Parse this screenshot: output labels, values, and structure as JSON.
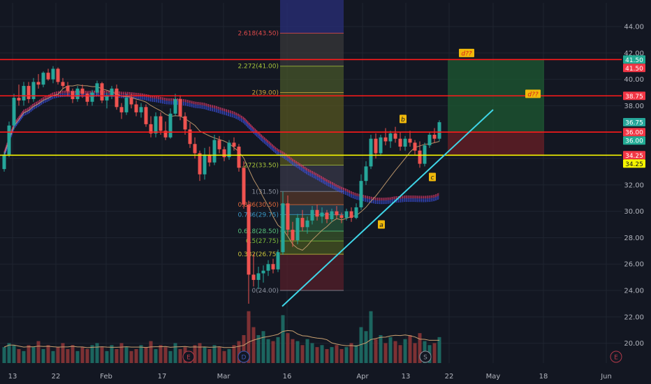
{
  "colors": {
    "background": "#131722",
    "grid": "#1f2430",
    "up": "#26a69a",
    "down": "#ef5350",
    "resistance": "#ff1a1a",
    "support": "#f5f500",
    "trendline": "#3fd6e8",
    "ema": "#c9a070",
    "ribbon_blue": "#3b4fd8",
    "ribbon_red": "#d83a6a",
    "axis_text": "#b2b5be",
    "badge_green": "#22ab94",
    "badge_red": "#f23645",
    "badge_yellow": "#f5f500",
    "badge_current": "#26a69a"
  },
  "chart_data": {
    "type": "candlestick",
    "title": "",
    "xlabel": "",
    "ylabel": "",
    "ylim": [
      18.5,
      45.8
    ],
    "y_ticks": [
      "20.00",
      "22.00",
      "24.00",
      "26.00",
      "28.00",
      "30.00",
      "32.00",
      "34.00",
      "36.00",
      "38.00",
      "40.00",
      "42.00",
      "44.00"
    ],
    "x_ticks": [
      "13",
      "22",
      "Feb",
      "17",
      "Mar",
      "16",
      "Apr",
      "13",
      "22",
      "May",
      "18",
      "Jun"
    ],
    "grid": true,
    "horizontal_levels": [
      {
        "value": 41.5,
        "color": "resistance"
      },
      {
        "value": 38.75,
        "color": "resistance"
      },
      {
        "value": 36.0,
        "color": "resistance"
      },
      {
        "value": 34.25,
        "color": "support"
      }
    ],
    "price_badges": [
      {
        "text": "41.50",
        "value": 41.5,
        "kind": "badge_green"
      },
      {
        "text": "41.50",
        "value": 41.5,
        "kind": "badge_red"
      },
      {
        "text": "38.75",
        "value": 38.75,
        "kind": "badge_red"
      },
      {
        "text": "36.75",
        "value": 36.75,
        "kind": "badge_current"
      },
      {
        "text": "36.00",
        "value": 36.0,
        "kind": "badge_red"
      },
      {
        "text": "36.00",
        "value": 36.0,
        "kind": "badge_green"
      },
      {
        "text": "34.25",
        "value": 34.25,
        "kind": "badge_red"
      },
      {
        "text": "34.25",
        "value": 34.25,
        "kind": "badge_yellow"
      }
    ],
    "fibonacci": {
      "levels": [
        {
          "label": "0(24.00)",
          "value": 24.0,
          "text_color": "#8a8f9c"
        },
        {
          "label": "0.382(26.75)",
          "value": 26.75,
          "text_color": "#c8c23a"
        },
        {
          "label": "0.5(27.75)",
          "value": 27.75,
          "text_color": "#7fbf3a"
        },
        {
          "label": "0.618(28.50)",
          "value": 28.5,
          "text_color": "#56c27a"
        },
        {
          "label": "0.786(29.75)",
          "value": 29.75,
          "text_color": "#3a9ac8"
        },
        {
          "label": "0.886(30.50)",
          "value": 30.5,
          "text_color": "#e0683a"
        },
        {
          "label": "1(31.50)",
          "value": 31.5,
          "text_color": "#8a8f9c"
        },
        {
          "label": "1.272(33.50)",
          "value": 33.5,
          "text_color": "#a6c23a"
        },
        {
          "label": "2(39.00)",
          "value": 39.0,
          "text_color": "#c8a23a"
        },
        {
          "label": "2.272(41.00)",
          "value": 41.0,
          "text_color": "#a6c23a"
        },
        {
          "label": "2.618(43.50)",
          "value": 43.5,
          "text_color": "#e04a4a"
        }
      ]
    },
    "pattern_labels": [
      {
        "text": "a",
        "value": 29.0
      },
      {
        "text": "b",
        "value": 37.0
      },
      {
        "text": "c",
        "value": 32.6
      },
      {
        "text": "d??",
        "value": 42.0
      },
      {
        "text": "d??",
        "value": 38.9
      }
    ],
    "event_markers": [
      "E",
      "D",
      "E",
      "S",
      "E"
    ],
    "trendline": {
      "from": 22.8,
      "to": 37.7
    },
    "position_box": {
      "entry": 36.0,
      "target": 41.5,
      "stop": 34.25
    },
    "candles": [
      [
        33.2,
        34.5,
        33.0,
        34.3
      ],
      [
        34.3,
        36.8,
        34.1,
        36.5
      ],
      [
        36.5,
        38.9,
        36.2,
        38.6
      ],
      [
        38.6,
        39.6,
        38.0,
        38.4
      ],
      [
        38.4,
        39.8,
        38.0,
        39.5
      ],
      [
        39.5,
        39.8,
        38.2,
        38.5
      ],
      [
        38.5,
        40.1,
        38.3,
        39.8
      ],
      [
        39.8,
        40.4,
        39.3,
        39.6
      ],
      [
        39.6,
        40.6,
        39.4,
        40.5
      ],
      [
        40.5,
        40.8,
        39.9,
        40.0
      ],
      [
        40.0,
        41.0,
        39.7,
        40.8
      ],
      [
        40.8,
        40.9,
        39.6,
        39.8
      ],
      [
        39.8,
        40.1,
        39.3,
        39.5
      ],
      [
        39.5,
        39.8,
        38.7,
        39.1
      ],
      [
        39.1,
        39.3,
        38.2,
        38.5
      ],
      [
        38.5,
        39.5,
        38.3,
        39.3
      ],
      [
        39.3,
        39.6,
        38.6,
        38.9
      ],
      [
        38.9,
        39.0,
        38.0,
        38.3
      ],
      [
        38.3,
        39.2,
        38.0,
        39.0
      ],
      [
        39.0,
        39.9,
        38.8,
        39.7
      ],
      [
        39.7,
        39.8,
        38.2,
        38.4
      ],
      [
        38.4,
        39.0,
        37.8,
        38.8
      ],
      [
        38.8,
        39.5,
        38.5,
        39.3
      ],
      [
        39.3,
        39.6,
        37.7,
        37.9
      ],
      [
        37.9,
        38.2,
        37.0,
        37.5
      ],
      [
        37.5,
        38.9,
        37.3,
        38.6
      ],
      [
        38.6,
        38.9,
        37.8,
        38.1
      ],
      [
        38.1,
        38.4,
        37.2,
        37.5
      ],
      [
        37.5,
        38.2,
        37.1,
        37.9
      ],
      [
        37.9,
        38.1,
        36.4,
        36.6
      ],
      [
        36.6,
        37.2,
        35.6,
        35.9
      ],
      [
        35.9,
        37.5,
        35.6,
        37.2
      ],
      [
        37.2,
        37.5,
        35.8,
        36.1
      ],
      [
        36.1,
        36.8,
        35.4,
        35.6
      ],
      [
        35.6,
        37.8,
        35.5,
        37.4
      ],
      [
        37.4,
        38.9,
        37.2,
        38.5
      ],
      [
        38.5,
        38.8,
        36.9,
        37.2
      ],
      [
        37.2,
        37.5,
        35.8,
        36.2
      ],
      [
        36.2,
        36.7,
        34.8,
        35.1
      ],
      [
        35.1,
        35.6,
        34.0,
        34.4
      ],
      [
        34.4,
        34.6,
        32.3,
        32.8
      ],
      [
        32.8,
        34.8,
        32.4,
        34.3
      ],
      [
        34.3,
        34.9,
        33.4,
        33.7
      ],
      [
        33.7,
        35.8,
        33.5,
        35.4
      ],
      [
        35.4,
        35.7,
        34.4,
        34.7
      ],
      [
        34.7,
        34.9,
        33.8,
        34.1
      ],
      [
        34.1,
        35.4,
        33.9,
        35.2
      ],
      [
        35.2,
        35.6,
        34.6,
        34.9
      ],
      [
        34.9,
        35.1,
        33.0,
        33.3
      ],
      [
        33.3,
        33.8,
        30.2,
        30.5
      ],
      [
        30.5,
        30.8,
        23.0,
        25.2
      ],
      [
        25.2,
        26.8,
        24.3,
        24.8
      ],
      [
        24.8,
        25.8,
        24.1,
        25.3
      ],
      [
        25.3,
        25.9,
        24.6,
        25.5
      ],
      [
        25.5,
        26.3,
        25.1,
        26.0
      ],
      [
        26.0,
        26.4,
        25.3,
        25.6
      ],
      [
        25.6,
        27.1,
        25.4,
        26.9
      ],
      [
        26.9,
        31.5,
        26.7,
        30.6
      ],
      [
        30.6,
        31.2,
        28.2,
        28.6
      ],
      [
        28.6,
        29.2,
        27.3,
        27.8
      ],
      [
        27.8,
        29.8,
        27.5,
        29.5
      ],
      [
        29.5,
        30.1,
        28.5,
        28.8
      ],
      [
        28.8,
        29.6,
        28.3,
        29.3
      ],
      [
        29.3,
        30.4,
        29.0,
        30.1
      ],
      [
        30.1,
        30.5,
        29.3,
        29.6
      ],
      [
        29.6,
        30.3,
        29.1,
        29.9
      ],
      [
        29.9,
        30.1,
        29.1,
        29.4
      ],
      [
        29.4,
        30.2,
        29.2,
        30.0
      ],
      [
        30.0,
        30.4,
        29.4,
        29.7
      ],
      [
        29.7,
        29.9,
        29.1,
        29.5
      ],
      [
        29.5,
        30.2,
        29.3,
        30.0
      ],
      [
        30.0,
        30.3,
        29.2,
        29.5
      ],
      [
        29.5,
        30.6,
        29.4,
        30.3
      ],
      [
        30.3,
        32.8,
        30.1,
        32.3
      ],
      [
        32.3,
        33.8,
        32.0,
        33.4
      ],
      [
        33.4,
        35.8,
        33.2,
        35.5
      ],
      [
        35.5,
        35.9,
        34.0,
        34.4
      ],
      [
        34.4,
        35.8,
        34.2,
        35.6
      ],
      [
        35.6,
        36.3,
        35.0,
        35.3
      ],
      [
        35.3,
        36.1,
        34.8,
        35.9
      ],
      [
        35.9,
        36.4,
        35.2,
        35.5
      ],
      [
        35.5,
        36.0,
        34.6,
        34.9
      ],
      [
        34.9,
        35.7,
        34.6,
        35.5
      ],
      [
        35.5,
        36.1,
        34.9,
        35.2
      ],
      [
        35.2,
        35.4,
        34.3,
        34.6
      ],
      [
        34.6,
        35.3,
        33.3,
        33.6
      ],
      [
        33.6,
        35.2,
        33.4,
        35.0
      ],
      [
        35.0,
        36.0,
        34.8,
        35.8
      ],
      [
        35.8,
        36.3,
        35.2,
        35.5
      ],
      [
        35.5,
        36.9,
        35.3,
        36.75
      ]
    ],
    "volume": [
      8,
      10,
      9,
      7,
      6,
      9,
      8,
      11,
      7,
      9,
      6,
      8,
      10,
      7,
      9,
      6,
      8,
      7,
      9,
      10,
      8,
      6,
      9,
      7,
      10,
      8,
      6,
      7,
      9,
      8,
      11,
      7,
      9,
      8,
      6,
      10,
      7,
      8,
      6,
      9,
      10,
      8,
      7,
      9,
      8,
      6,
      7,
      9,
      11,
      14,
      26,
      18,
      14,
      16,
      12,
      11,
      13,
      24,
      15,
      12,
      11,
      9,
      12,
      10,
      8,
      9,
      7,
      8,
      9,
      7,
      8,
      10,
      9,
      18,
      16,
      26,
      12,
      14,
      10,
      13,
      11,
      9,
      12,
      14,
      10,
      15,
      11,
      9,
      10,
      13
    ],
    "volume_max": 28
  },
  "axis": {
    "event_labels": [
      "E",
      "D",
      "E",
      "S",
      "E"
    ]
  }
}
